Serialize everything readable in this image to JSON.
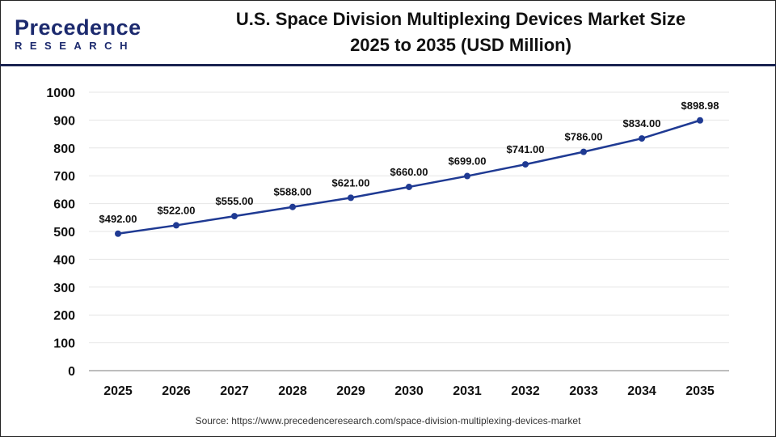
{
  "logo": {
    "main": "Precedence",
    "sub": "RESEARCH"
  },
  "title_line1": "U.S. Space Division Multiplexing Devices Market Size",
  "title_line2": "2025 to 2035 (USD Million)",
  "source": "Source: https://www.precedenceresearch.com/space-division-multiplexing-devices-market",
  "colors": {
    "line": "#1f3a93",
    "header_rule": "#1a2350",
    "grid": "#e6e6e6"
  },
  "chart_data": {
    "type": "line",
    "title": "U.S. Space Division Multiplexing Devices Market Size 2025 to 2035 (USD Million)",
    "categories": [
      "2025",
      "2026",
      "2027",
      "2028",
      "2029",
      "2030",
      "2031",
      "2032",
      "2033",
      "2034",
      "2035"
    ],
    "values": [
      492.0,
      522.0,
      555.0,
      588.0,
      621.0,
      660.0,
      699.0,
      741.0,
      786.0,
      834.0,
      898.98
    ],
    "labels": [
      "$492.00",
      "$522.00",
      "$555.00",
      "$588.00",
      "$621.00",
      "$660.00",
      "$699.00",
      "$741.00",
      "$786.00",
      "$834.00",
      "$898.98"
    ],
    "ylim": [
      0,
      1000
    ],
    "yticks": [
      0,
      100,
      200,
      300,
      400,
      500,
      600,
      700,
      800,
      900,
      1000
    ],
    "grid": true,
    "legend": "none"
  }
}
